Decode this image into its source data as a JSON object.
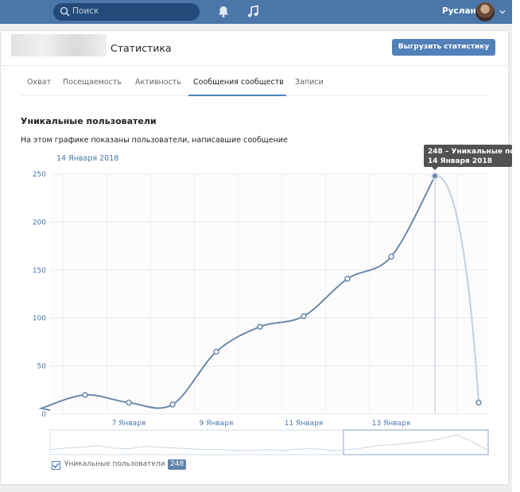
{
  "topbar": {
    "search_placeholder": "Поиск",
    "user_name": "Руслан",
    "icons": [
      "search-icon",
      "bell-icon",
      "music-icon",
      "chevron-down-icon"
    ]
  },
  "header": {
    "title": "Статистика",
    "export_button": "Выгрузить статистику"
  },
  "tabs": [
    {
      "label": "Охват",
      "active": false
    },
    {
      "label": "Посещаемость",
      "active": false
    },
    {
      "label": "Активность",
      "active": false
    },
    {
      "label": "Сообщения сообществ",
      "active": true
    },
    {
      "label": "Записи",
      "active": false
    }
  ],
  "section": {
    "title": "Уникальные пользователи",
    "description": "На этом графике показаны пользователи, написавшие сообщение",
    "selected_date": "14 Января 2018"
  },
  "tooltip": {
    "line1": "248 – Уникальные пол",
    "line2": "14 Января 2018"
  },
  "legend": {
    "checked": true,
    "label": "Уникальные пользователи",
    "badge": "248"
  },
  "colors": {
    "accent": "#5181b8",
    "series": "#6d89a7",
    "topbar": "#4a76a8"
  },
  "chart_data": {
    "type": "line",
    "ylim": [
      0,
      250
    ],
    "yticks": [
      0,
      50,
      100,
      150,
      200,
      250
    ],
    "xtick_labels": [
      "7 Января",
      "9 Января",
      "11 Января",
      "13 Января"
    ],
    "series": [
      {
        "name": "Уникальные пользователи",
        "x": [
          "5 Января",
          "6 Января",
          "7 Января",
          "8 Января",
          "9 Января",
          "10 Января",
          "11 Января",
          "12 Января",
          "13 Января",
          "14 Января",
          "15 Января"
        ],
        "values": [
          6,
          20,
          12,
          10,
          65,
          91,
          102,
          141,
          164,
          248,
          12
        ]
      }
    ],
    "highlight": {
      "x": "14 Января",
      "value": 248
    },
    "grid": true
  }
}
